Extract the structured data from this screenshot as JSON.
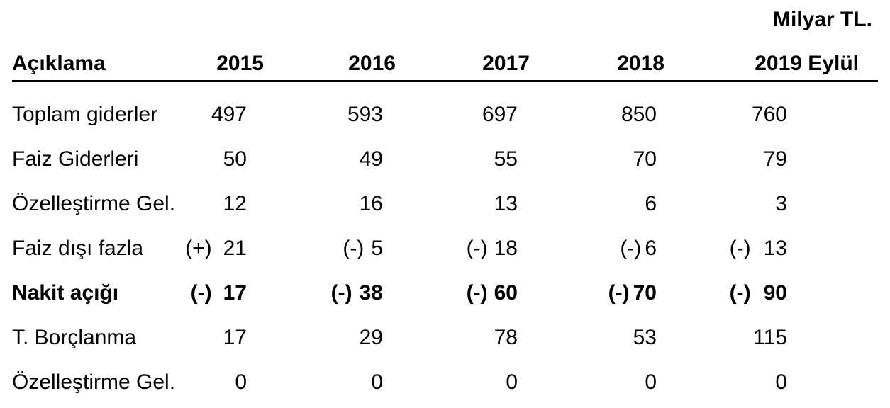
{
  "unit": "Milyar TL.",
  "colors": {
    "text": "#000000",
    "background": "#ffffff",
    "header_rule": "#000000"
  },
  "table": {
    "columns": [
      "Açıklama",
      "2015",
      "2016",
      "2017",
      "2018",
      "2019 Eylül"
    ],
    "rows": [
      {
        "label": "Toplam giderler",
        "cells": [
          {
            "sign": "",
            "value": "497"
          },
          {
            "sign": "",
            "value": "593"
          },
          {
            "sign": "",
            "value": "697"
          },
          {
            "sign": "",
            "value": "850"
          },
          {
            "sign": "",
            "value": "760"
          }
        ]
      },
      {
        "label": "Faiz Giderleri",
        "cells": [
          {
            "sign": "",
            "value": "50"
          },
          {
            "sign": "",
            "value": "49"
          },
          {
            "sign": "",
            "value": "55"
          },
          {
            "sign": "",
            "value": "70"
          },
          {
            "sign": "",
            "value": "79"
          }
        ]
      },
      {
        "label": "Özelleştirme Gel.",
        "cells": [
          {
            "sign": "",
            "value": "12"
          },
          {
            "sign": "",
            "value": "16"
          },
          {
            "sign": "",
            "value": "13"
          },
          {
            "sign": "",
            "value": "6"
          },
          {
            "sign": "",
            "value": "3"
          }
        ]
      },
      {
        "label": "Faiz dışı fazla",
        "cells": [
          {
            "sign": "(+)",
            "value": "21"
          },
          {
            "sign": "(-)",
            "value": "5"
          },
          {
            "sign": "(-)",
            "value": "18"
          },
          {
            "sign": "(-)",
            "value": "6"
          },
          {
            "sign": "(-)",
            "value": "13"
          }
        ]
      },
      {
        "label": "Nakit açığı",
        "cells": [
          {
            "sign": "(-)",
            "value": "17"
          },
          {
            "sign": "(-)",
            "value": "38"
          },
          {
            "sign": "(-)",
            "value": "60"
          },
          {
            "sign": "(-)",
            "value": "70"
          },
          {
            "sign": "(-)",
            "value": "90"
          }
        ]
      },
      {
        "label": "T. Borçlanma",
        "cells": [
          {
            "sign": "",
            "value": "17"
          },
          {
            "sign": "",
            "value": "29"
          },
          {
            "sign": "",
            "value": "78"
          },
          {
            "sign": "",
            "value": "53"
          },
          {
            "sign": "",
            "value": "115"
          }
        ]
      },
      {
        "label": "Özelleştirme Gel.",
        "cells": [
          {
            "sign": "",
            "value": "0"
          },
          {
            "sign": "",
            "value": "0"
          },
          {
            "sign": "",
            "value": "0"
          },
          {
            "sign": "",
            "value": "0"
          },
          {
            "sign": "",
            "value": "0"
          }
        ]
      }
    ]
  }
}
